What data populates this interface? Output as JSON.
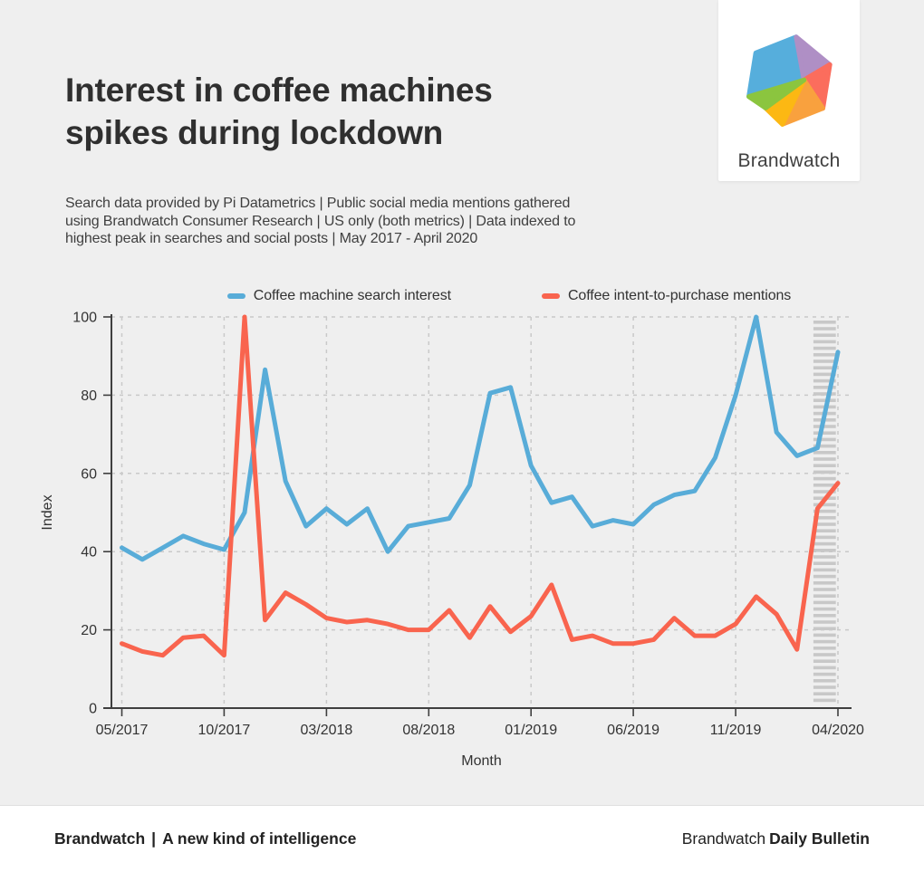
{
  "page": {
    "background": "#efefef",
    "footer_background": "#ffffff"
  },
  "header": {
    "title_line1": "Interest in coffee machines",
    "title_line2": "spikes during lockdown",
    "subtitle_line1": "Search data provided by Pi Datametrics | Public social media mentions gathered",
    "subtitle_line2": "using Brandwatch Consumer Research | US only (both metrics) | Data indexed to",
    "subtitle_line3": "highest peak in searches and social posts | May 2017 - April 2020"
  },
  "logo": {
    "brand": "Brandwatch",
    "facet_colors": [
      "#56aedc",
      "#af8fc5",
      "#fb6d5d",
      "#f9a13e",
      "#fcb813",
      "#8bc53f"
    ]
  },
  "chart_data": {
    "type": "line",
    "title": "Interest in coffee machines spikes during lockdown",
    "xlabel": "Month",
    "ylabel": "Index",
    "ylim": [
      0,
      100
    ],
    "yticks": [
      0,
      20,
      40,
      60,
      80,
      100
    ],
    "grid": "dashed",
    "legend_position": "top",
    "x_categories": [
      "05/2017",
      "06/2017",
      "07/2017",
      "08/2017",
      "09/2017",
      "10/2017",
      "11/2017",
      "12/2017",
      "01/2018",
      "02/2018",
      "03/2018",
      "04/2018",
      "05/2018",
      "06/2018",
      "07/2018",
      "08/2018",
      "09/2018",
      "10/2018",
      "11/2018",
      "12/2018",
      "01/2019",
      "02/2019",
      "03/2019",
      "04/2019",
      "05/2019",
      "06/2019",
      "07/2019",
      "08/2019",
      "09/2019",
      "10/2019",
      "11/2019",
      "12/2019",
      "01/2020",
      "02/2020",
      "03/2020",
      "04/2020"
    ],
    "x_tick_labels": [
      "05/2017",
      "10/2017",
      "03/2018",
      "08/2018",
      "01/2019",
      "06/2019",
      "11/2019",
      "04/2020"
    ],
    "highlight_band": {
      "label": "lockdown-highlight",
      "from_month_index": 33.8,
      "to_month_index": 34.9,
      "style": "horizontal-hatch",
      "color": "#c8c8c8"
    },
    "series": [
      {
        "name": "Coffee machine search interest",
        "color": "#58acd8",
        "values": [
          41,
          38,
          41,
          44,
          42,
          40.5,
          50,
          86.5,
          58,
          46.5,
          51,
          47,
          51,
          40,
          46.5,
          47.5,
          48.5,
          57,
          80.5,
          82,
          62,
          52.5,
          54,
          46.5,
          48,
          47,
          52,
          54.5,
          55.5,
          64,
          80,
          100,
          70.5,
          64.5,
          66.5,
          91
        ]
      },
      {
        "name": "Coffee intent-to-purchase mentions",
        "color": "#f9644e",
        "values": [
          16.5,
          14.5,
          13.5,
          18,
          18.5,
          13.5,
          100,
          22.5,
          29.5,
          26.5,
          23,
          22,
          22.5,
          21.5,
          20,
          20,
          25,
          18,
          26,
          19.5,
          23.5,
          31.5,
          17.5,
          18.5,
          16.5,
          16.5,
          17.5,
          23,
          18.5,
          18.5,
          21.5,
          28.5,
          24,
          15,
          51,
          57.5
        ]
      }
    ]
  },
  "footer": {
    "left_brand": "Brandwatch",
    "left_separator": "|",
    "left_tagline": "A new kind of intelligence",
    "right_brand": "Brandwatch",
    "right_title": "Daily Bulletin"
  }
}
